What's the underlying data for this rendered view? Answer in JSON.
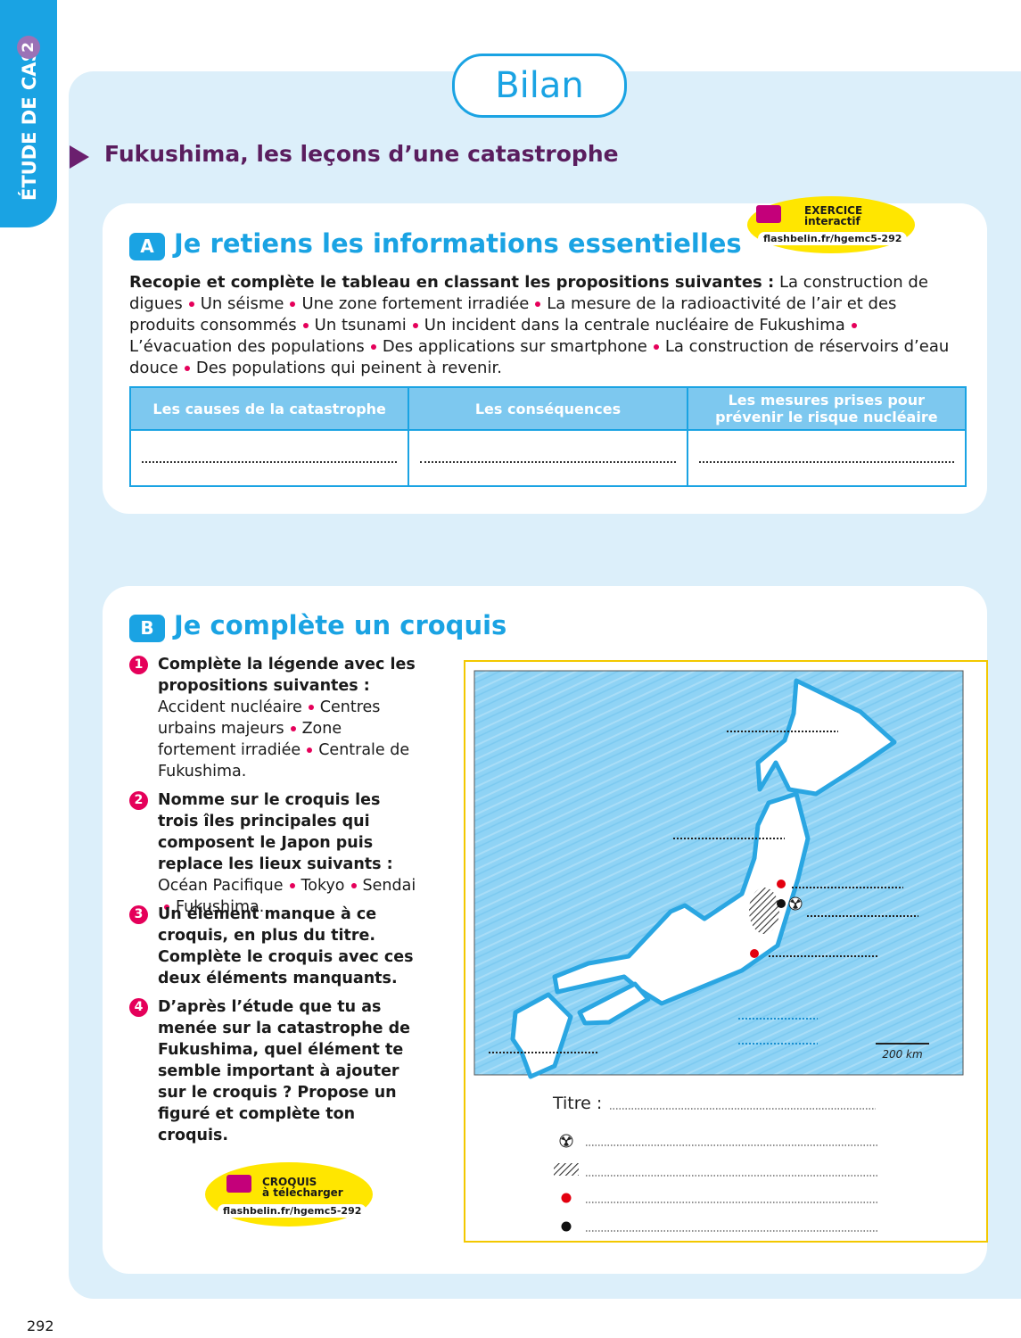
{
  "side_tab": {
    "label": "ÉTUDE DE CAS",
    "number": "2"
  },
  "title": "Bilan",
  "subtitle": "Fukushima, les leçons d’une catastrophe",
  "section_a": {
    "letter": "A",
    "heading": "Je retiens les informations essentielles",
    "badge": {
      "line1": "EXERCICE",
      "line2": "interactif",
      "url": "flashbelin.fr/hgemc5-292"
    },
    "instruction_lead": "Recopie et complète le tableau en classant les propositions suivantes :",
    "propositions": [
      "La construction de digues",
      "Un séisme",
      "Une zone fortement irradiée",
      "La mesure de la radioactivité de l’air et des produits consommés",
      "Un tsunami",
      "Un incident dans la centrale nucléaire de Fukushima",
      "L’évacuation des populations",
      "Des applications sur smartphone",
      "La construction de réservoirs d’eau douce",
      "Des populations qui peinent à revenir."
    ],
    "table": {
      "headers": [
        "Les causes de la catastrophe",
        "Les conséquences",
        "Les mesures prises pour prévenir le risque nucléaire"
      ]
    }
  },
  "section_b": {
    "letter": "B",
    "heading": "Je complète un croquis",
    "instructions": [
      {
        "number": "1",
        "text": "Complète la légende avec les propositions suivantes :",
        "propositions": [
          "Accident nucléaire",
          "Centres urbains majeurs",
          "Zone fortement irradiée",
          "Centrale de Fukushima."
        ]
      },
      {
        "number": "2",
        "text": "Nomme sur le croquis les trois îles principales qui composent le Japon puis replace les lieux suivants :",
        "propositions": [
          "Océan Pacifique",
          "Tokyo",
          "Sendai",
          "Fukushima."
        ]
      },
      {
        "number": "3",
        "text": "Un élément manque à ce croquis, en plus du titre. Complète le croquis avec ces deux éléments manquants."
      },
      {
        "number": "4",
        "text": "D’après l’étude que tu as menée sur la catastrophe de Fukushima, quel élément te semble important à ajouter sur le croquis ? Propose un figuré et complète ton croquis."
      }
    ],
    "map": {
      "scale": "200 km",
      "title_label": "Titre :"
    },
    "badge": {
      "line1": "CROQUIS",
      "line2": "à télécharger",
      "url": "flashbelin.fr/hgemc5-292"
    }
  },
  "page_number": "292"
}
